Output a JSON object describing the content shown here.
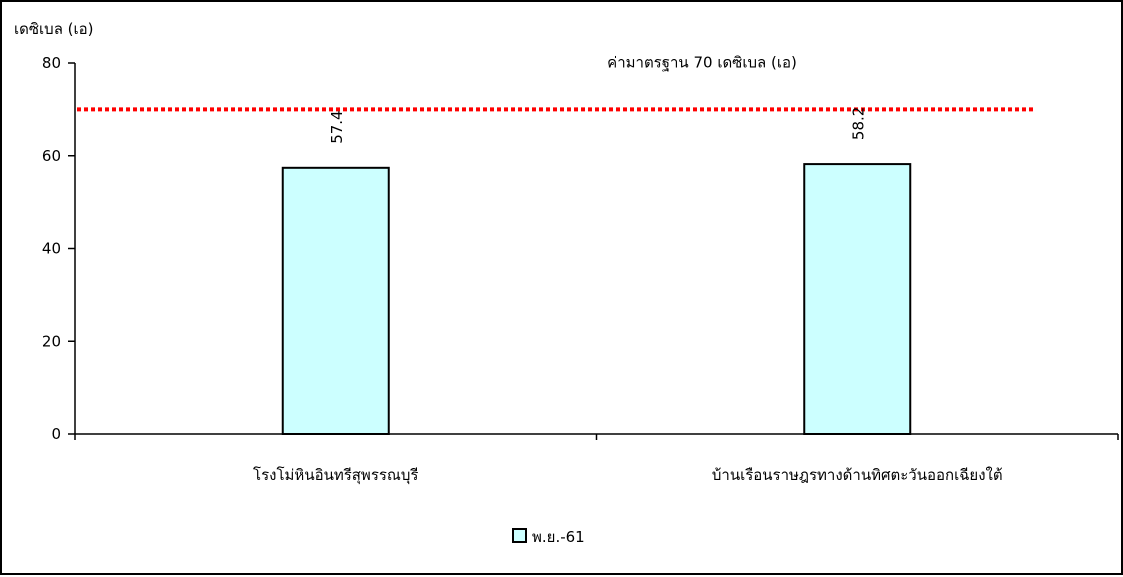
{
  "chart_data": {
    "type": "bar",
    "ylabel": "เดซิเบล (เอ)",
    "categories": [
      "โรงโม่หินอินทรีสุพรรณบุรี",
      "บ้านเรือนราษฎรทางด้านทิศตะวันออกเฉียงใต้"
    ],
    "series": [
      {
        "name": "พ.ย.-61",
        "values": [
          57.4,
          58.2
        ],
        "value_labels": [
          "57.4",
          "58.2"
        ],
        "color": "#ccffff"
      }
    ],
    "ylim": [
      0,
      80
    ],
    "yticks": [
      0,
      20,
      40,
      60,
      80
    ],
    "yticklabels": [
      "0",
      "20",
      "40",
      "60",
      "80"
    ],
    "reference_line": {
      "value": 70,
      "label": "ค่ามาตรฐาน 70 เดซิเบล (เอ)",
      "color": "#ff0000"
    },
    "grid": false,
    "legend": "bottom-center"
  }
}
